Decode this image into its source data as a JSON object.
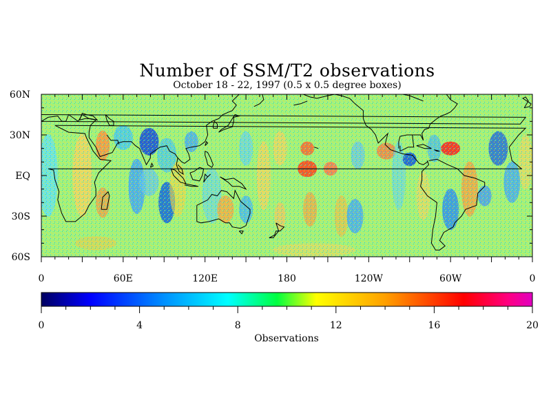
{
  "title": "Number of SSM/T2 observations",
  "subtitle": "October 18 - 22, 1997 (0.5 x 0.5 degree boxes)",
  "map": {
    "lat_labels": [
      "60N",
      "30N",
      "EQ",
      "30S",
      "60S"
    ],
    "lon_labels": [
      "0",
      "60E",
      "120E",
      "180",
      "120W",
      "60W",
      "0"
    ],
    "lat_range": [
      -60,
      60
    ],
    "lon_range": [
      0,
      360
    ]
  },
  "colorbar": {
    "label": "Observations",
    "range": [
      0,
      20
    ],
    "tick_labels": [
      "0",
      "4",
      "8",
      "12",
      "16",
      "20"
    ],
    "colors": [
      "#000080",
      "#0000ff",
      "#0080ff",
      "#00ffff",
      "#00ff00",
      "#ffff00",
      "#ff8000",
      "#ff0000",
      "#ff0080",
      "#e000c0"
    ]
  }
}
